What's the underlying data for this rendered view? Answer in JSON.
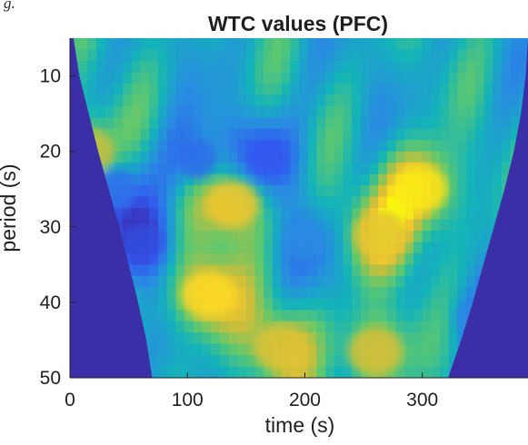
{
  "caption": "g.",
  "chart_data": {
    "type": "heatmap",
    "title": "WTC values (PFC)",
    "xlabel": "time (s)",
    "ylabel": "period (s)",
    "xlim": [
      0,
      390
    ],
    "ylim": [
      5,
      50
    ],
    "y_reversed": true,
    "xticks": [
      0,
      100,
      200,
      300
    ],
    "yticks": [
      10,
      20,
      30,
      40,
      50
    ],
    "colormap": "parula",
    "color_range": [
      0,
      1
    ],
    "cone_of_influence": {
      "description_values": "Left and right cone edges in time (s) at given period (s)",
      "period": [
        5,
        10,
        15,
        20,
        25,
        30,
        35,
        40,
        45,
        50
      ],
      "left_time": [
        3,
        8,
        16,
        24,
        33,
        42,
        50,
        58,
        65,
        70
      ],
      "right_time": [
        390,
        388,
        384,
        378,
        370,
        361,
        352,
        343,
        333,
        322
      ]
    },
    "features": [
      {
        "type": "high",
        "time": 118,
        "period": 39,
        "value": 0.92
      },
      {
        "type": "high",
        "time": 138,
        "period": 27,
        "value": 0.85
      },
      {
        "type": "high",
        "time": 298,
        "period": 25,
        "value": 0.95
      },
      {
        "type": "high",
        "time": 265,
        "period": 31,
        "value": 0.82
      },
      {
        "type": "high",
        "time": 180,
        "period": 46,
        "value": 0.8
      },
      {
        "type": "high",
        "time": 260,
        "period": 46.5,
        "value": 0.78
      },
      {
        "type": "high",
        "time": 15,
        "period": 20,
        "value": 0.75
      },
      {
        "type": "low",
        "time": 62,
        "period": 32,
        "value": 0.12
      },
      {
        "type": "low",
        "time": 167,
        "period": 21,
        "value": 0.15
      },
      {
        "type": "low",
        "time": 108,
        "period": 21,
        "value": 0.2
      },
      {
        "type": "low",
        "time": 200,
        "period": 32,
        "value": 0.3
      },
      {
        "type": "low",
        "time": 345,
        "period": 42,
        "value": 0.28
      },
      {
        "type": "low",
        "time": 40,
        "period": 25,
        "value": 0.22
      }
    ],
    "grid": false,
    "legend": "none"
  },
  "colors": {
    "background": "#ffffff",
    "outside_cone": "#3b2fa8",
    "axis": "#1f1f1f"
  }
}
